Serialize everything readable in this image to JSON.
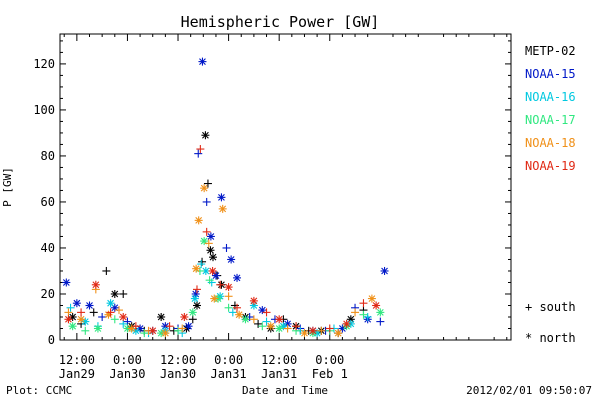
{
  "chart_data": {
    "type": "scatter",
    "title": "Hemispheric Power [GW]",
    "xlabel": "Date and Time",
    "ylabel": "P [GW]",
    "ylim": [
      0,
      133
    ],
    "xlim_hours": [
      -16,
      91
    ],
    "yticks": [
      0,
      20,
      40,
      60,
      80,
      100,
      120
    ],
    "xticks": [
      {
        "hour": -12,
        "line1": "12:00",
        "line2": "Jan29"
      },
      {
        "hour": 0,
        "line1": "0:00",
        "line2": "Jan30"
      },
      {
        "hour": 12,
        "line1": "12:00",
        "line2": "Jan30"
      },
      {
        "hour": 24,
        "line1": "0:00",
        "line2": "Jan31"
      },
      {
        "hour": 36,
        "line1": "12:00",
        "line2": "Jan31"
      },
      {
        "hour": 48,
        "line1": "0:00",
        "line2": "Feb 1"
      }
    ],
    "legend_placement": "right",
    "hemisphere_legend": [
      {
        "symbol": "+",
        "label": "south"
      },
      {
        "symbol": "*",
        "label": "north"
      }
    ],
    "series": [
      {
        "name": "METP-02",
        "color": "#000000",
        "points": [
          {
            "t": -13,
            "p": 10,
            "h": "n"
          },
          {
            "t": -11,
            "p": 7,
            "h": "s"
          },
          {
            "t": -8,
            "p": 12,
            "h": "s"
          },
          {
            "t": -5,
            "p": 30,
            "h": "s"
          },
          {
            "t": -3,
            "p": 20,
            "h": "n"
          },
          {
            "t": -1,
            "p": 20,
            "h": "s"
          },
          {
            "t": 1,
            "p": 6,
            "h": "n"
          },
          {
            "t": 4,
            "p": 4,
            "h": "s"
          },
          {
            "t": 8,
            "p": 10,
            "h": "n"
          },
          {
            "t": 11,
            "p": 4,
            "h": "s"
          },
          {
            "t": 14,
            "p": 5,
            "h": "n"
          },
          {
            "t": 15.5,
            "p": 9,
            "h": "s"
          },
          {
            "t": 16.5,
            "p": 15,
            "h": "n"
          },
          {
            "t": 17.7,
            "p": 34,
            "h": "s"
          },
          {
            "t": 18.5,
            "p": 89,
            "h": "n"
          },
          {
            "t": 19.1,
            "p": 68,
            "h": "s"
          },
          {
            "t": 19.7,
            "p": 39,
            "h": "n"
          },
          {
            "t": 20.3,
            "p": 36,
            "h": "n"
          },
          {
            "t": 21.3,
            "p": 28,
            "h": "s"
          },
          {
            "t": 22.3,
            "p": 24,
            "h": "n"
          },
          {
            "t": 25.5,
            "p": 15,
            "h": "s"
          },
          {
            "t": 28,
            "p": 10,
            "h": "n"
          },
          {
            "t": 31,
            "p": 7,
            "h": "s"
          },
          {
            "t": 34,
            "p": 5,
            "h": "n"
          },
          {
            "t": 37,
            "p": 9,
            "h": "s"
          },
          {
            "t": 40,
            "p": 6,
            "h": "n"
          },
          {
            "t": 43,
            "p": 4,
            "h": "s"
          },
          {
            "t": 46,
            "p": 4,
            "h": "n"
          },
          {
            "t": 50,
            "p": 3,
            "h": "s"
          },
          {
            "t": 53,
            "p": 9,
            "h": "n"
          },
          {
            "t": 56,
            "p": 13,
            "h": "s"
          }
        ]
      },
      {
        "name": "NOAA-15",
        "color": "#0018c8",
        "points": [
          {
            "t": -14.5,
            "p": 25,
            "h": "n"
          },
          {
            "t": -12,
            "p": 16,
            "h": "n"
          },
          {
            "t": -9,
            "p": 15,
            "h": "n"
          },
          {
            "t": -6,
            "p": 10,
            "h": "s"
          },
          {
            "t": -3,
            "p": 14,
            "h": "n"
          },
          {
            "t": 0,
            "p": 8,
            "h": "s"
          },
          {
            "t": 3,
            "p": 5,
            "h": "n"
          },
          {
            "t": 6,
            "p": 4,
            "h": "s"
          },
          {
            "t": 9,
            "p": 6,
            "h": "n"
          },
          {
            "t": 12,
            "p": 5,
            "h": "s"
          },
          {
            "t": 14.5,
            "p": 6,
            "h": "n"
          },
          {
            "t": 16.2,
            "p": 20,
            "h": "n"
          },
          {
            "t": 16.8,
            "p": 81,
            "h": "s"
          },
          {
            "t": 17.8,
            "p": 121,
            "h": "n"
          },
          {
            "t": 18.8,
            "p": 60,
            "h": "s"
          },
          {
            "t": 19.8,
            "p": 45,
            "h": "n"
          },
          {
            "t": 21,
            "p": 28,
            "h": "n"
          },
          {
            "t": 22.3,
            "p": 62,
            "h": "n"
          },
          {
            "t": 23.5,
            "p": 40,
            "h": "s"
          },
          {
            "t": 24.6,
            "p": 35,
            "h": "n"
          },
          {
            "t": 26,
            "p": 27,
            "h": "n"
          },
          {
            "t": 29,
            "p": 10,
            "h": "s"
          },
          {
            "t": 32,
            "p": 13,
            "h": "n"
          },
          {
            "t": 35,
            "p": 9,
            "h": "s"
          },
          {
            "t": 38,
            "p": 7,
            "h": "n"
          },
          {
            "t": 41,
            "p": 5,
            "h": "s"
          },
          {
            "t": 44,
            "p": 4,
            "h": "n"
          },
          {
            "t": 47,
            "p": 4,
            "h": "s"
          },
          {
            "t": 51,
            "p": 5,
            "h": "n"
          },
          {
            "t": 54,
            "p": 14,
            "h": "s"
          },
          {
            "t": 57,
            "p": 9,
            "h": "n"
          },
          {
            "t": 60,
            "p": 8,
            "h": "s"
          },
          {
            "t": 61,
            "p": 30,
            "h": "n"
          }
        ]
      },
      {
        "name": "NOAA-16",
        "color": "#00c8e0",
        "points": [
          {
            "t": -13.5,
            "p": 14,
            "h": "s"
          },
          {
            "t": -10,
            "p": 8,
            "h": "n"
          },
          {
            "t": -7,
            "p": 6,
            "h": "s"
          },
          {
            "t": -4,
            "p": 16,
            "h": "n"
          },
          {
            "t": -1,
            "p": 7,
            "h": "s"
          },
          {
            "t": 2,
            "p": 4,
            "h": "n"
          },
          {
            "t": 5,
            "p": 3,
            "h": "s"
          },
          {
            "t": 9,
            "p": 4,
            "h": "n"
          },
          {
            "t": 13,
            "p": 3,
            "h": "s"
          },
          {
            "t": 16,
            "p": 18,
            "h": "n"
          },
          {
            "t": 17.5,
            "p": 33,
            "h": "s"
          },
          {
            "t": 18.6,
            "p": 30,
            "h": "n"
          },
          {
            "t": 20,
            "p": 25,
            "h": "s"
          },
          {
            "t": 22,
            "p": 19,
            "h": "n"
          },
          {
            "t": 25,
            "p": 12,
            "h": "s"
          },
          {
            "t": 30,
            "p": 15,
            "h": "n"
          },
          {
            "t": 33,
            "p": 8,
            "h": "s"
          },
          {
            "t": 37,
            "p": 6,
            "h": "n"
          },
          {
            "t": 41,
            "p": 4,
            "h": "s"
          },
          {
            "t": 45,
            "p": 3,
            "h": "n"
          },
          {
            "t": 49,
            "p": 5,
            "h": "s"
          },
          {
            "t": 53,
            "p": 7,
            "h": "n"
          },
          {
            "t": 57,
            "p": 10,
            "h": "s"
          }
        ]
      },
      {
        "name": "NOAA-17",
        "color": "#30e880",
        "points": [
          {
            "t": -13,
            "p": 6,
            "h": "n"
          },
          {
            "t": -10,
            "p": 4,
            "h": "s"
          },
          {
            "t": -7,
            "p": 5,
            "h": "n"
          },
          {
            "t": -3,
            "p": 9,
            "h": "s"
          },
          {
            "t": 0,
            "p": 5,
            "h": "n"
          },
          {
            "t": 4,
            "p": 3,
            "h": "s"
          },
          {
            "t": 8,
            "p": 3,
            "h": "n"
          },
          {
            "t": 12,
            "p": 4,
            "h": "s"
          },
          {
            "t": 15.5,
            "p": 12,
            "h": "n"
          },
          {
            "t": 17.2,
            "p": 30,
            "h": "s"
          },
          {
            "t": 18.2,
            "p": 43,
            "h": "n"
          },
          {
            "t": 19.5,
            "p": 26,
            "h": "s"
          },
          {
            "t": 21.5,
            "p": 18,
            "h": "n"
          },
          {
            "t": 24,
            "p": 14,
            "h": "s"
          },
          {
            "t": 28,
            "p": 9,
            "h": "n"
          },
          {
            "t": 32,
            "p": 6,
            "h": "s"
          },
          {
            "t": 36,
            "p": 5,
            "h": "n"
          },
          {
            "t": 40,
            "p": 4,
            "h": "s"
          },
          {
            "t": 44,
            "p": 3,
            "h": "n"
          },
          {
            "t": 48,
            "p": 4,
            "h": "s"
          },
          {
            "t": 52,
            "p": 6,
            "h": "n"
          },
          {
            "t": 56,
            "p": 11,
            "h": "s"
          },
          {
            "t": 60,
            "p": 12,
            "h": "n"
          }
        ]
      },
      {
        "name": "NOAA-18",
        "color": "#f09018",
        "points": [
          {
            "t": -14,
            "p": 12,
            "h": "s"
          },
          {
            "t": -11,
            "p": 9,
            "h": "n"
          },
          {
            "t": -7.5,
            "p": 22,
            "h": "s"
          },
          {
            "t": -4.5,
            "p": 11,
            "h": "n"
          },
          {
            "t": -2,
            "p": 13,
            "h": "s"
          },
          {
            "t": 1,
            "p": 5,
            "h": "n"
          },
          {
            "t": 5,
            "p": 4,
            "h": "s"
          },
          {
            "t": 9,
            "p": 3,
            "h": "n"
          },
          {
            "t": 13,
            "p": 5,
            "h": "s"
          },
          {
            "t": 16.3,
            "p": 31,
            "h": "n"
          },
          {
            "t": 16.9,
            "p": 52,
            "h": "n"
          },
          {
            "t": 18.2,
            "p": 66,
            "h": "n"
          },
          {
            "t": 19.3,
            "p": 42,
            "h": "s"
          },
          {
            "t": 20.6,
            "p": 18,
            "h": "n"
          },
          {
            "t": 22.6,
            "p": 57,
            "h": "n"
          },
          {
            "t": 24,
            "p": 19,
            "h": "s"
          },
          {
            "t": 26.5,
            "p": 11,
            "h": "n"
          },
          {
            "t": 30,
            "p": 9,
            "h": "s"
          },
          {
            "t": 34,
            "p": 6,
            "h": "n"
          },
          {
            "t": 38,
            "p": 5,
            "h": "s"
          },
          {
            "t": 42,
            "p": 3,
            "h": "n"
          },
          {
            "t": 46,
            "p": 4,
            "h": "s"
          },
          {
            "t": 50,
            "p": 3,
            "h": "n"
          },
          {
            "t": 54,
            "p": 12,
            "h": "s"
          },
          {
            "t": 58,
            "p": 18,
            "h": "n"
          }
        ]
      },
      {
        "name": "NOAA-19",
        "color": "#e02814",
        "points": [
          {
            "t": -14,
            "p": 9,
            "h": "n"
          },
          {
            "t": -11,
            "p": 12,
            "h": "s"
          },
          {
            "t": -7.5,
            "p": 24,
            "h": "n"
          },
          {
            "t": -4,
            "p": 12,
            "h": "s"
          },
          {
            "t": -1,
            "p": 10,
            "h": "n"
          },
          {
            "t": 2,
            "p": 6,
            "h": "s"
          },
          {
            "t": 6,
            "p": 4,
            "h": "n"
          },
          {
            "t": 10,
            "p": 6,
            "h": "s"
          },
          {
            "t": 13.5,
            "p": 10,
            "h": "n"
          },
          {
            "t": 16.5,
            "p": 22,
            "h": "s"
          },
          {
            "t": 17.3,
            "p": 83,
            "h": "s"
          },
          {
            "t": 18.8,
            "p": 47,
            "h": "s"
          },
          {
            "t": 20.2,
            "p": 30,
            "h": "n"
          },
          {
            "t": 22,
            "p": 24,
            "h": "s"
          },
          {
            "t": 24,
            "p": 23,
            "h": "n"
          },
          {
            "t": 26,
            "p": 14,
            "h": "s"
          },
          {
            "t": 30,
            "p": 17,
            "h": "n"
          },
          {
            "t": 33,
            "p": 12,
            "h": "s"
          },
          {
            "t": 36,
            "p": 9,
            "h": "n"
          },
          {
            "t": 40,
            "p": 6,
            "h": "s"
          },
          {
            "t": 44,
            "p": 4,
            "h": "n"
          },
          {
            "t": 48,
            "p": 5,
            "h": "s"
          },
          {
            "t": 52,
            "p": 7,
            "h": "n"
          },
          {
            "t": 56,
            "p": 16,
            "h": "s"
          },
          {
            "t": 59,
            "p": 15,
            "h": "n"
          }
        ]
      }
    ]
  },
  "footer": {
    "credit": "Plot: CCMC",
    "timestamp": "2012/02/01 09:50:07"
  }
}
